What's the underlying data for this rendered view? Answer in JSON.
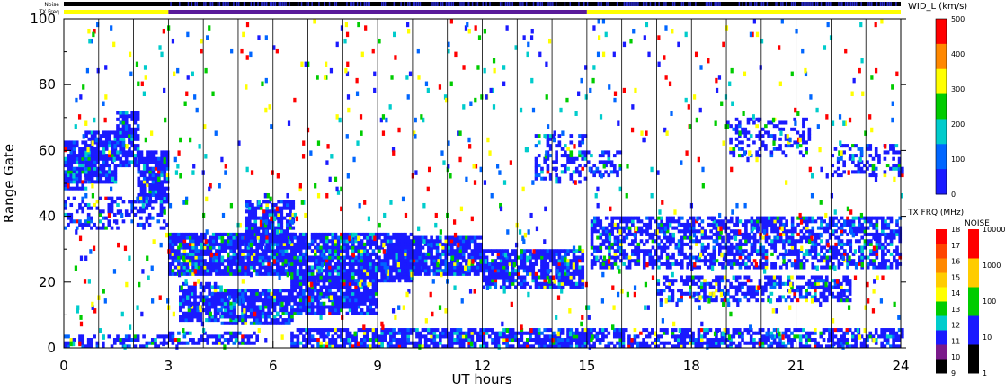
{
  "chart_data": {
    "type": "heatmap",
    "xlabel": "UT hours",
    "ylabel": "Range Gate",
    "xlim": [
      0,
      24
    ],
    "ylim": [
      0,
      100
    ],
    "xticks": [
      0,
      3,
      6,
      9,
      12,
      15,
      18,
      21,
      24
    ],
    "yticks": [
      0,
      20,
      40,
      60,
      80,
      100
    ],
    "grid": "vertical lines every 1 hour",
    "top_bars": {
      "noise_label": "Noise",
      "txfreq_label": "TX Freq",
      "txfreq_segments": [
        {
          "start": 0,
          "end": 3,
          "color": "#ffff00"
        },
        {
          "start": 3,
          "end": 15,
          "color": "#5a1a9a"
        },
        {
          "start": 15,
          "end": 24,
          "color": "#ffff00"
        }
      ]
    },
    "colorbars": [
      {
        "title": "WID_L (km/s)",
        "ticks": [
          "0",
          "100",
          "200",
          "300",
          "400",
          "500"
        ],
        "range": [
          0,
          500
        ],
        "colors": [
          "#1a1aff",
          "#0066ff",
          "#00cccc",
          "#00cc00",
          "#ffff00",
          "#ff8800",
          "#ff0000"
        ]
      },
      {
        "title": "TX FRQ (MHz)",
        "ticks": [
          "9",
          "10",
          "11",
          "12",
          "13",
          "14",
          "15",
          "16",
          "17",
          "18"
        ],
        "colors": [
          "#000000",
          "#7a1a8a",
          "#1a1aff",
          "#00cccc",
          "#00cc00",
          "#ffff00",
          "#ffcc00",
          "#ff8800",
          "#ff4400",
          "#ff0000"
        ]
      },
      {
        "title": "NOISE",
        "ticks": [
          "1",
          "10",
          "100",
          "1000",
          "10000"
        ],
        "colors": [
          "#000000",
          "#1a1aff",
          "#00cc00",
          "#ffcc00",
          "#ff0000"
        ]
      }
    ],
    "regions": [
      {
        "x": [
          0.0,
          0.6
        ],
        "y": [
          48,
          63
        ],
        "density": 0.85
      },
      {
        "x": [
          0.6,
          1.5
        ],
        "y": [
          50,
          66
        ],
        "density": 0.85
      },
      {
        "x": [
          1.5,
          2.1
        ],
        "y": [
          55,
          72
        ],
        "density": 0.8
      },
      {
        "x": [
          2.1,
          3.0
        ],
        "y": [
          44,
          60
        ],
        "density": 0.85
      },
      {
        "x": [
          0.0,
          3.0
        ],
        "y": [
          36,
          46
        ],
        "density": 0.35
      },
      {
        "x": [
          0.0,
          3.0
        ],
        "y": [
          0,
          4
        ],
        "density": 0.5
      },
      {
        "x": [
          3.0,
          6.5
        ],
        "y": [
          22,
          35
        ],
        "density": 0.9
      },
      {
        "x": [
          5.2,
          6.6
        ],
        "y": [
          30,
          45
        ],
        "density": 0.8
      },
      {
        "x": [
          3.3,
          4.5
        ],
        "y": [
          8,
          20
        ],
        "density": 0.75
      },
      {
        "x": [
          4.5,
          6.5
        ],
        "y": [
          7,
          18
        ],
        "density": 0.8
      },
      {
        "x": [
          6.5,
          9.0
        ],
        "y": [
          10,
          24
        ],
        "density": 0.85
      },
      {
        "x": [
          3.0,
          5.5
        ],
        "y": [
          1,
          5
        ],
        "density": 0.5
      },
      {
        "x": [
          6.5,
          10.0
        ],
        "y": [
          20,
          35
        ],
        "density": 0.85
      },
      {
        "x": [
          9.5,
          12.0
        ],
        "y": [
          22,
          34
        ],
        "density": 0.85
      },
      {
        "x": [
          12.0,
          14.9
        ],
        "y": [
          18,
          30
        ],
        "density": 0.8
      },
      {
        "x": [
          6.5,
          15.0
        ],
        "y": [
          0,
          6
        ],
        "density": 0.75
      },
      {
        "x": [
          13.5,
          15.0
        ],
        "y": [
          50,
          65
        ],
        "density": 0.4
      },
      {
        "x": [
          15.0,
          24.0
        ],
        "y": [
          0,
          6
        ],
        "density": 0.6
      },
      {
        "x": [
          15.1,
          24.0
        ],
        "y": [
          24,
          40
        ],
        "density": 0.6
      },
      {
        "x": [
          17.0,
          22.5
        ],
        "y": [
          14,
          22
        ],
        "density": 0.55
      },
      {
        "x": [
          19.0,
          21.4
        ],
        "y": [
          58,
          70
        ],
        "density": 0.35
      },
      {
        "x": [
          22.0,
          24.0
        ],
        "y": [
          52,
          62
        ],
        "density": 0.4
      },
      {
        "x": [
          15.0,
          16.0
        ],
        "y": [
          52,
          60
        ],
        "density": 0.4
      }
    ]
  },
  "labels": {
    "noise": "Noise",
    "txfreq": "TX Freq",
    "xlabel": "UT hours",
    "ylabel": "Range Gate",
    "wid_title": "WID_L (km/s)",
    "txfrq_title": "TX FRQ (MHz)",
    "noise_title": "NOISE"
  }
}
